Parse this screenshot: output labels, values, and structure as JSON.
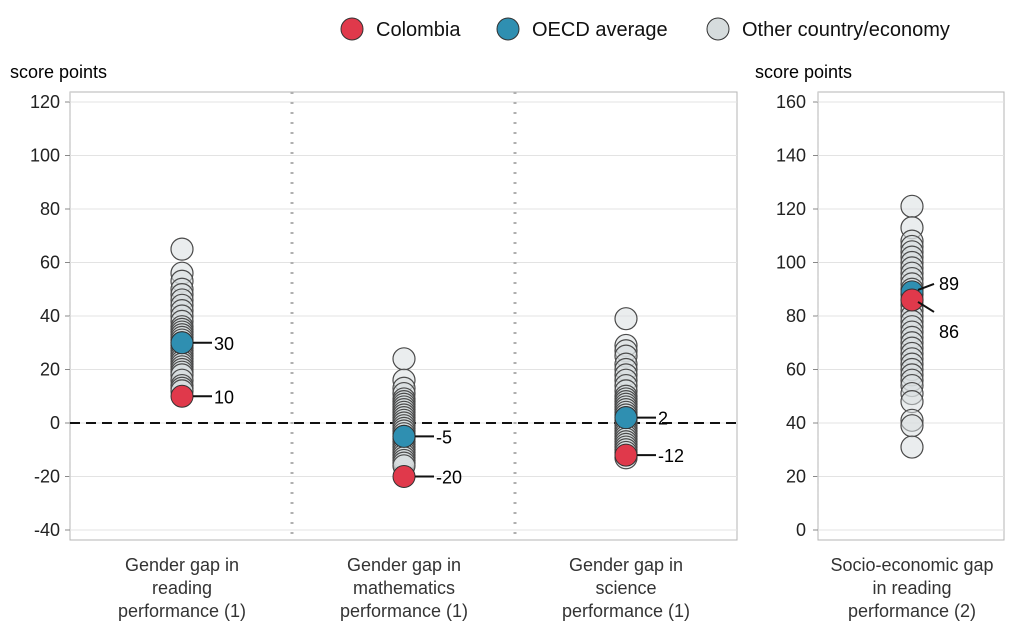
{
  "chart_data": {
    "type": "scatter",
    "legend": {
      "placement": "top",
      "entries": [
        {
          "label": "Colombia",
          "color": "#e0394b"
        },
        {
          "label": "OECD average",
          "color": "#2f8fb1"
        },
        {
          "label": "Other country/economy",
          "color": "#d6dcdd"
        }
      ]
    },
    "panels": [
      {
        "ylabel": "score points",
        "ylim": [
          -40,
          120
        ],
        "yticks": [
          -40,
          -20,
          0,
          20,
          40,
          60,
          80,
          100,
          120
        ],
        "reference_line": 0,
        "categories": [
          {
            "label_lines": [
              "Gender gap in",
              "reading",
              "performance (1)"
            ],
            "other": [
              65,
              56,
              53,
              50,
              48,
              46,
              44,
              42,
              40,
              38,
              36,
              35,
              34,
              33,
              32,
              31,
              30,
              29,
              28,
              27,
              26,
              25,
              24,
              23,
              22,
              21,
              20,
              19,
              18,
              16,
              14,
              13,
              12
            ],
            "oecd": {
              "value": 30,
              "label": "30"
            },
            "colombia": {
              "value": 10,
              "label": "10"
            }
          },
          {
            "label_lines": [
              "Gender gap in",
              "mathematics",
              "performance (1)"
            ],
            "other": [
              24,
              16,
              13,
              11,
              9,
              8,
              7,
              6,
              5,
              4,
              3,
              2,
              1,
              0,
              -1,
              -2,
              -3,
              -4,
              -5,
              -6,
              -7,
              -8,
              -9,
              -10,
              -11,
              -12,
              -13,
              -14,
              -15,
              -16
            ],
            "oecd": {
              "value": -5,
              "label": "-5"
            },
            "colombia": {
              "value": -20,
              "label": "-20"
            }
          },
          {
            "label_lines": [
              "Gender gap in",
              "science",
              "performance (1)"
            ],
            "other": [
              39,
              29,
              27,
              25,
              22,
              20,
              18,
              16,
              14,
              12,
              10,
              9,
              8,
              7,
              6,
              5,
              4,
              3,
              2,
              1,
              0,
              -1,
              -2,
              -3,
              -4,
              -5,
              -6,
              -7,
              -8,
              -9,
              -10,
              -11,
              -13
            ],
            "oecd": {
              "value": 2,
              "label": "2"
            },
            "colombia": {
              "value": -12,
              "label": "-12"
            }
          }
        ]
      },
      {
        "ylabel": "score points",
        "ylim": [
          -4,
          164
        ],
        "yticks": [
          0,
          20,
          40,
          60,
          80,
          100,
          120,
          140,
          160
        ],
        "categories": [
          {
            "label_lines": [
              "Socio-economic gap",
              "in reading",
              "performance (2)"
            ],
            "other": [
              121,
              113,
              108,
              106,
              104,
              102,
              100,
              98,
              96,
              94,
              92,
              90,
              88,
              86,
              84,
              82,
              80,
              78,
              76,
              74,
              72,
              70,
              68,
              66,
              64,
              62,
              60,
              58,
              56,
              54,
              51,
              48,
              41,
              39,
              31
            ],
            "oecd": {
              "value": 89,
              "label": "89"
            },
            "colombia": {
              "value": 86,
              "label": "86"
            }
          }
        ]
      }
    ]
  }
}
